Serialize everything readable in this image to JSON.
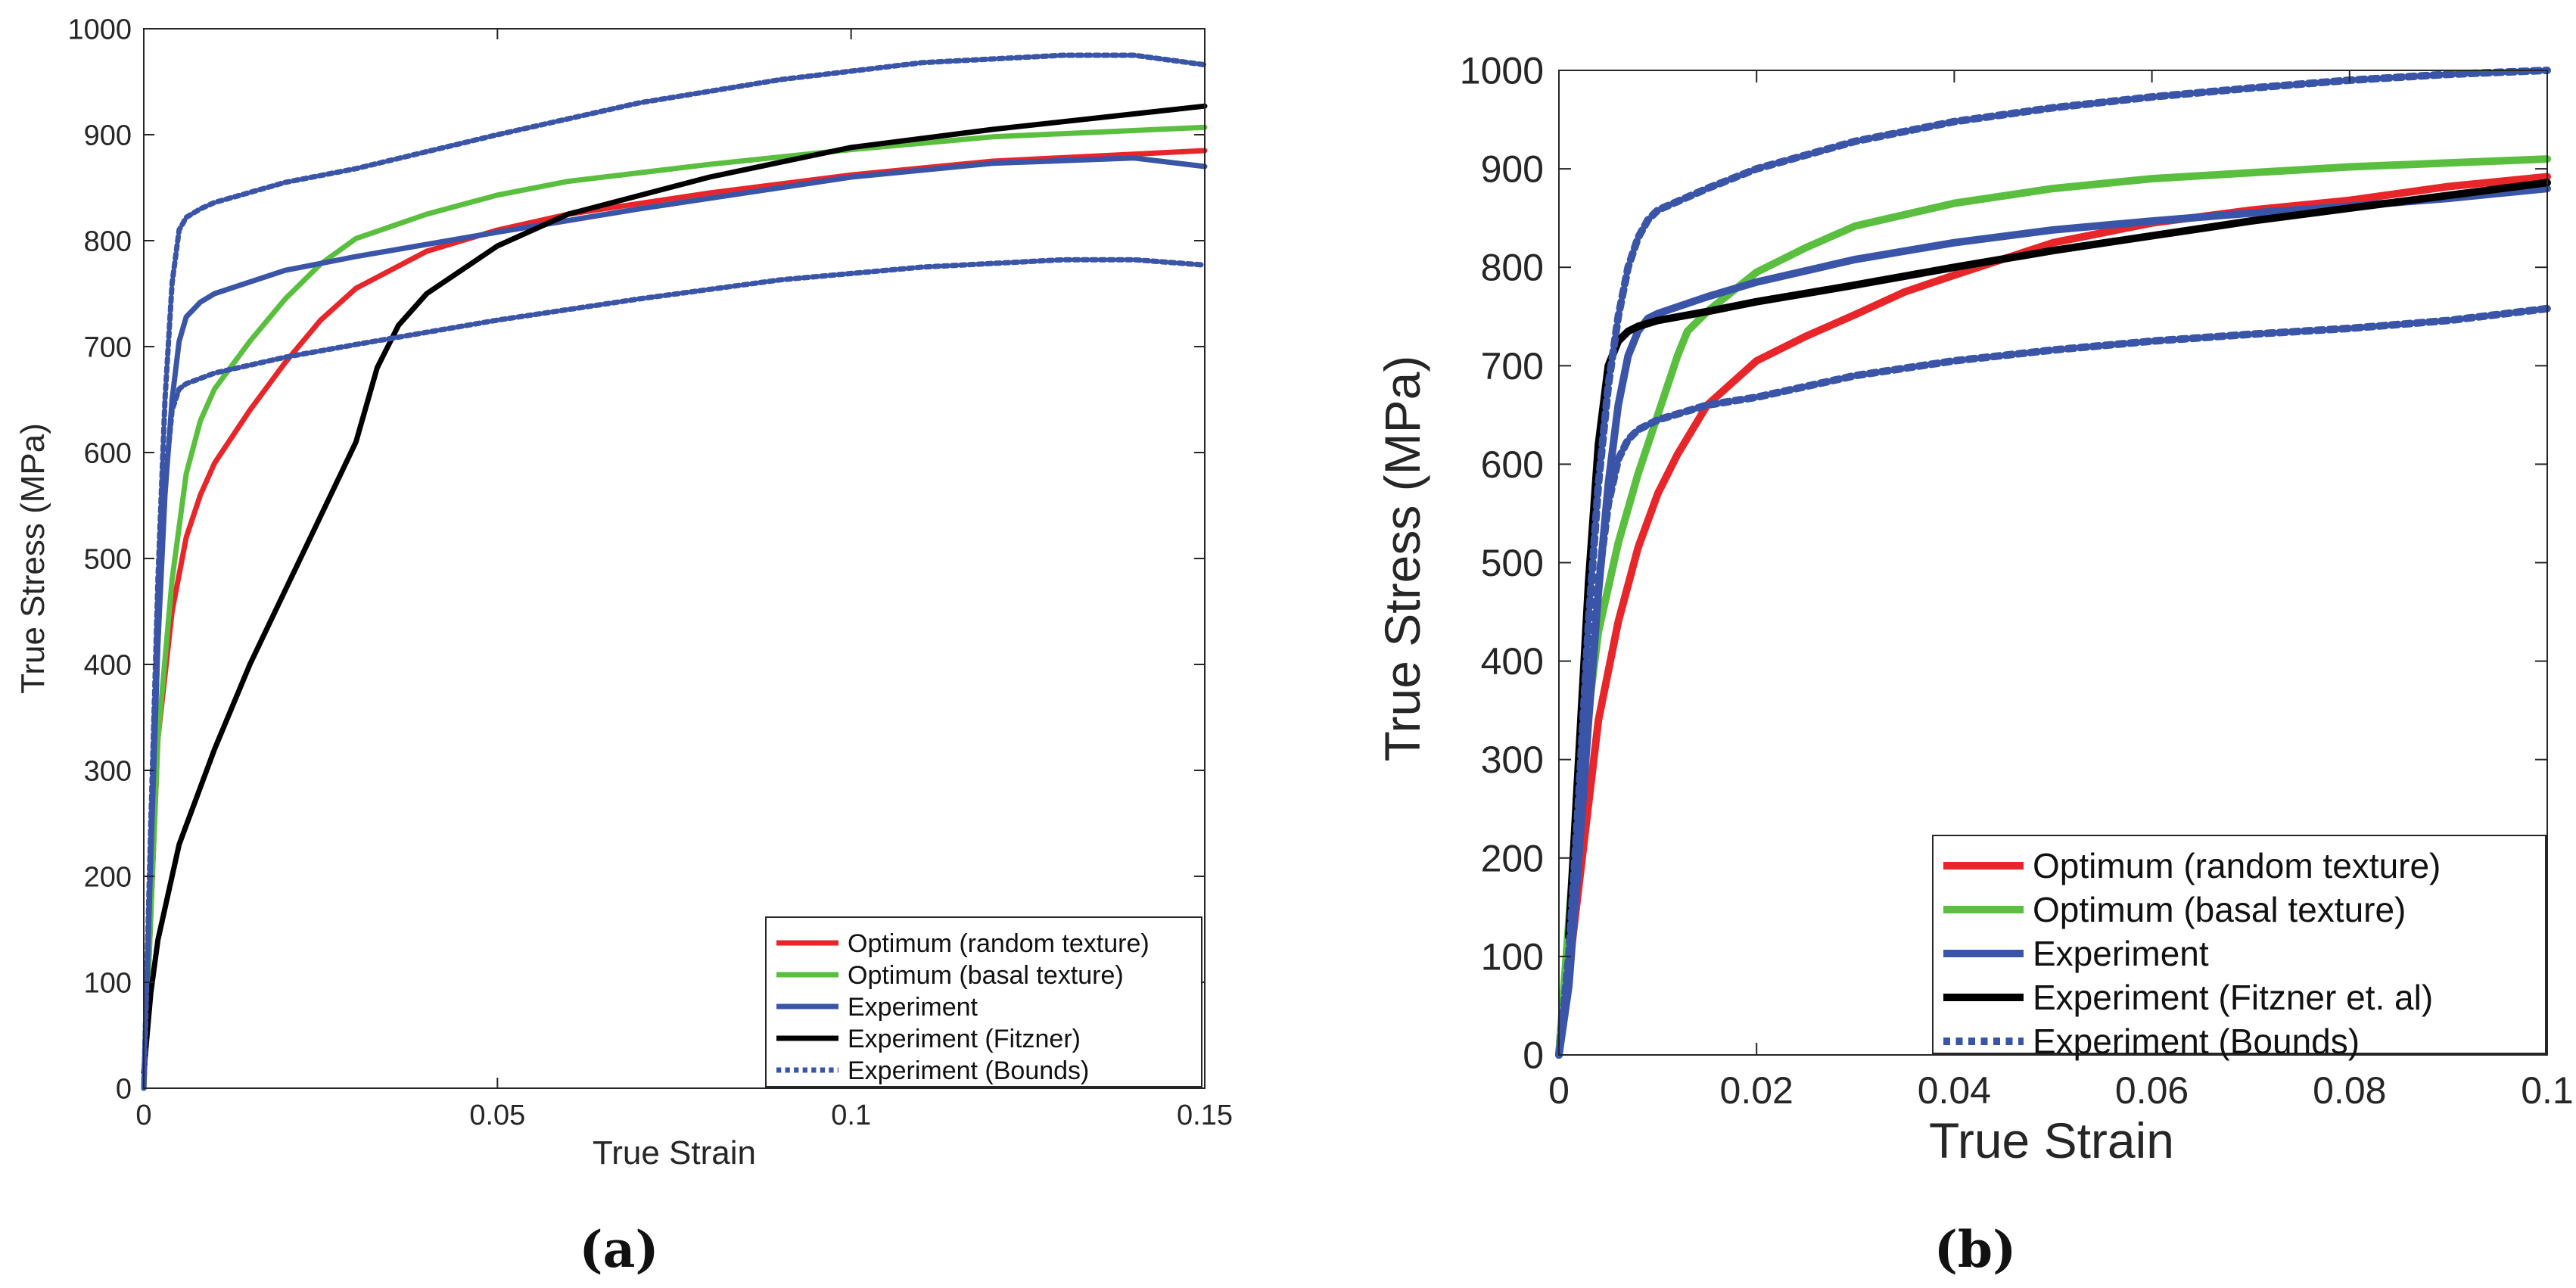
{
  "panels": {
    "a": {
      "label": "(a)"
    },
    "b": {
      "label": "(b)"
    }
  },
  "chart_data": [
    {
      "type": "line",
      "panel": "a",
      "xlabel": "True Strain",
      "ylabel": "True Stress (MPa)",
      "xlim": [
        0,
        0.15
      ],
      "ylim": [
        0,
        1000
      ],
      "xticks": [
        0,
        0.05,
        0.1,
        0.15
      ],
      "xtick_labels": [
        "0",
        "0.05",
        "0.1",
        "0.15"
      ],
      "yticks": [
        0,
        100,
        200,
        300,
        400,
        500,
        600,
        700,
        800,
        900,
        1000
      ],
      "ytick_labels": [
        "0",
        "100",
        "200",
        "300",
        "400",
        "500",
        "600",
        "700",
        "800",
        "900",
        "1000"
      ],
      "legend_position": "bottom-right",
      "series": [
        {
          "name": "Optimum (random texture)",
          "color": "#e8262a",
          "style": "solid",
          "x": [
            0,
            0.002,
            0.004,
            0.006,
            0.008,
            0.01,
            0.015,
            0.02,
            0.025,
            0.03,
            0.04,
            0.05,
            0.06,
            0.08,
            0.1,
            0.12,
            0.15
          ],
          "y": [
            0,
            330,
            450,
            520,
            560,
            590,
            640,
            685,
            725,
            755,
            790,
            810,
            825,
            845,
            862,
            875,
            885
          ]
        },
        {
          "name": "Optimum (basal texture)",
          "color": "#5abf3f",
          "style": "solid",
          "x": [
            0,
            0.002,
            0.004,
            0.006,
            0.008,
            0.01,
            0.015,
            0.02,
            0.025,
            0.03,
            0.04,
            0.05,
            0.06,
            0.08,
            0.1,
            0.12,
            0.15
          ],
          "y": [
            0,
            330,
            480,
            580,
            630,
            660,
            705,
            745,
            778,
            802,
            825,
            843,
            856,
            872,
            886,
            898,
            907
          ]
        },
        {
          "name": "Experiment",
          "color": "#3a55a8",
          "style": "solid",
          "x": [
            0,
            0.001,
            0.002,
            0.003,
            0.004,
            0.005,
            0.006,
            0.008,
            0.01,
            0.02,
            0.03,
            0.05,
            0.07,
            0.1,
            0.12,
            0.14,
            0.15
          ],
          "y": [
            0,
            220,
            420,
            560,
            650,
            705,
            728,
            742,
            750,
            772,
            785,
            808,
            830,
            860,
            873,
            878,
            870
          ]
        },
        {
          "name": "Experiment (Fitzner)",
          "color": "#000000",
          "style": "solid",
          "x": [
            0,
            0.001,
            0.002,
            0.005,
            0.01,
            0.015,
            0.02,
            0.025,
            0.03,
            0.033,
            0.036,
            0.04,
            0.05,
            0.06,
            0.08,
            0.1,
            0.12,
            0.15
          ],
          "y": [
            15,
            90,
            140,
            230,
            320,
            400,
            470,
            540,
            610,
            680,
            720,
            750,
            795,
            825,
            860,
            888,
            905,
            927
          ]
        },
        {
          "name": "Experiment (Bounds)",
          "color": "#3a55a8",
          "style": "dotted",
          "x": [
            0,
            0.001,
            0.002,
            0.003,
            0.004,
            0.005,
            0.006,
            0.008,
            0.01,
            0.02,
            0.03,
            0.05,
            0.07,
            0.09,
            0.11,
            0.13,
            0.14,
            0.15
          ],
          "y": [
            0,
            230,
            420,
            570,
            640,
            660,
            665,
            670,
            675,
            690,
            702,
            725,
            745,
            763,
            775,
            782,
            782,
            777
          ]
        },
        {
          "name": "",
          "color": "#3a55a8",
          "style": "dotted",
          "x": [
            0,
            0.001,
            0.002,
            0.003,
            0.004,
            0.005,
            0.006,
            0.008,
            0.01,
            0.02,
            0.03,
            0.05,
            0.07,
            0.09,
            0.11,
            0.13,
            0.14,
            0.15
          ],
          "y": [
            0,
            250,
            480,
            650,
            760,
            810,
            822,
            830,
            836,
            855,
            868,
            900,
            930,
            952,
            968,
            975,
            975,
            966
          ]
        }
      ]
    },
    {
      "type": "line",
      "panel": "b",
      "xlabel": "True Strain",
      "ylabel": "True Stress (MPa)",
      "xlim": [
        0,
        0.1
      ],
      "ylim": [
        0,
        1000
      ],
      "xticks": [
        0,
        0.02,
        0.04,
        0.06,
        0.08,
        0.1
      ],
      "xtick_labels": [
        "0",
        "0.02",
        "0.04",
        "0.06",
        "0.08",
        "0.1"
      ],
      "yticks": [
        0,
        100,
        200,
        300,
        400,
        500,
        600,
        700,
        800,
        900,
        1000
      ],
      "ytick_labels": [
        "0",
        "100",
        "200",
        "300",
        "400",
        "500",
        "600",
        "700",
        "800",
        "900",
        "1000"
      ],
      "legend_position": "bottom-right",
      "series": [
        {
          "name": "Optimum (random texture)",
          "color": "#e8262a",
          "style": "solid",
          "x": [
            0,
            0.002,
            0.004,
            0.006,
            0.008,
            0.01,
            0.012,
            0.015,
            0.02,
            0.025,
            0.03,
            0.035,
            0.04,
            0.05,
            0.06,
            0.07,
            0.08,
            0.09,
            0.1
          ],
          "y": [
            0,
            170,
            340,
            440,
            515,
            570,
            610,
            660,
            705,
            730,
            752,
            775,
            792,
            825,
            845,
            858,
            868,
            882,
            892
          ]
        },
        {
          "name": "Optimum (basal texture)",
          "color": "#5abf3f",
          "style": "solid",
          "x": [
            0,
            0.002,
            0.004,
            0.006,
            0.008,
            0.01,
            0.012,
            0.013,
            0.015,
            0.02,
            0.025,
            0.03,
            0.04,
            0.05,
            0.06,
            0.07,
            0.08,
            0.09,
            0.1
          ],
          "y": [
            0,
            270,
            430,
            520,
            590,
            650,
            710,
            735,
            755,
            795,
            820,
            842,
            865,
            880,
            890,
            896,
            902,
            906,
            910
          ]
        },
        {
          "name": "Experiment",
          "color": "#3a55a8",
          "style": "solid",
          "x": [
            0,
            0.001,
            0.002,
            0.003,
            0.004,
            0.005,
            0.006,
            0.007,
            0.008,
            0.009,
            0.01,
            0.015,
            0.02,
            0.03,
            0.04,
            0.05,
            0.06,
            0.07,
            0.08,
            0.09,
            0.1
          ],
          "y": [
            0,
            70,
            200,
            340,
            470,
            580,
            660,
            710,
            735,
            748,
            753,
            770,
            785,
            808,
            825,
            838,
            847,
            855,
            862,
            870,
            880
          ]
        },
        {
          "name": "Experiment (Fitzner et. al)",
          "color": "#000000",
          "style": "solid",
          "x": [
            0.001,
            0.002,
            0.003,
            0.004,
            0.005,
            0.006,
            0.007,
            0.008,
            0.009,
            0.01,
            0.015,
            0.02,
            0.03,
            0.04,
            0.05,
            0.06,
            0.07,
            0.08,
            0.09,
            0.1
          ],
          "y": [
            120,
            300,
            480,
            620,
            700,
            725,
            735,
            740,
            743,
            746,
            755,
            765,
            782,
            800,
            817,
            832,
            847,
            860,
            873,
            886
          ]
        },
        {
          "name": "Experiment (Bounds)",
          "color": "#3a55a8",
          "style": "dotted",
          "x": [
            0,
            0.001,
            0.002,
            0.003,
            0.004,
            0.005,
            0.006,
            0.007,
            0.008,
            0.01,
            0.015,
            0.02,
            0.03,
            0.04,
            0.05,
            0.06,
            0.07,
            0.08,
            0.09,
            0.1
          ],
          "y": [
            0,
            80,
            220,
            360,
            480,
            560,
            605,
            625,
            635,
            645,
            660,
            668,
            690,
            705,
            716,
            725,
            732,
            738,
            746,
            758
          ]
        },
        {
          "name": "",
          "color": "#3a55a8",
          "style": "dotted",
          "x": [
            0,
            0.001,
            0.002,
            0.003,
            0.004,
            0.005,
            0.006,
            0.007,
            0.008,
            0.009,
            0.01,
            0.015,
            0.02,
            0.03,
            0.04,
            0.05,
            0.06,
            0.07,
            0.08,
            0.09,
            0.1
          ],
          "y": [
            0,
            100,
            260,
            440,
            580,
            680,
            750,
            800,
            830,
            848,
            858,
            880,
            900,
            928,
            948,
            962,
            973,
            982,
            990,
            996,
            1002
          ]
        }
      ]
    }
  ]
}
